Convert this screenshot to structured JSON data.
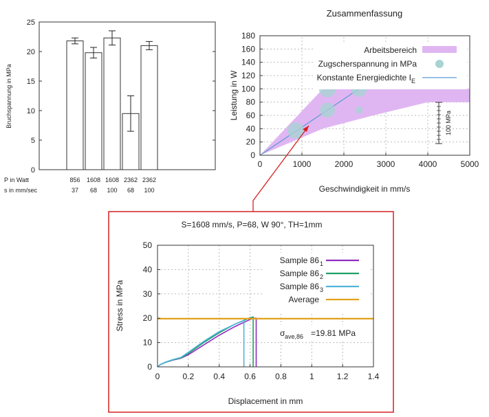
{
  "chart_data": [
    {
      "type": "bar",
      "ylabel": "Bruchspannung in MPa",
      "ylim": [
        0,
        25
      ],
      "yticks": [
        0,
        5,
        10,
        15,
        20,
        25
      ],
      "row_labels": [
        "P in Watt",
        "s in mm/sec"
      ],
      "categories_p": [
        "856",
        "1608",
        "1608",
        "2362",
        "2362"
      ],
      "categories_s": [
        "37",
        "68",
        "100",
        "68",
        "100"
      ],
      "values": [
        21.8,
        19.8,
        22.3,
        9.5,
        21.0
      ],
      "errors": [
        0.5,
        0.9,
        1.2,
        3.0,
        0.7
      ]
    },
    {
      "type": "scatter",
      "title": "Zusammenfassung",
      "xlabel": "Geschwindigkeit in mm/s",
      "ylabel": "Leistung in W",
      "xlim": [
        0,
        5000
      ],
      "ylim": [
        0,
        180
      ],
      "xticks": [
        0,
        1000,
        2000,
        3000,
        4000,
        5000
      ],
      "yticks": [
        0,
        20,
        40,
        60,
        80,
        100,
        120,
        140,
        160,
        180
      ],
      "grid": true,
      "legend": [
        "Arbeitsbereich",
        "Zugscherspannung in MPa",
        "Konstante Energiedichte I",
        "E"
      ],
      "area_upper": [
        [
          0,
          0
        ],
        [
          1500,
          100
        ],
        [
          5000,
          100
        ]
      ],
      "area_lower": [
        [
          5000,
          80
        ],
        [
          4000,
          80
        ],
        [
          2700,
          60
        ],
        [
          1500,
          40
        ],
        [
          0,
          0
        ]
      ],
      "points": [
        {
          "x": 856,
          "y": 37,
          "mpa": 21.8
        },
        {
          "x": 1608,
          "y": 68,
          "mpa": 19.8
        },
        {
          "x": 1608,
          "y": 100,
          "mpa": 22.3
        },
        {
          "x": 2362,
          "y": 68,
          "mpa": 9.5
        },
        {
          "x": 2362,
          "y": 100,
          "mpa": 21.0
        }
      ],
      "energy_line": [
        [
          0,
          0
        ],
        [
          2362,
          100
        ]
      ],
      "scale_bar_label": "100 MPa",
      "colors": {
        "area": "#e0b6f2",
        "points": "#a8d3d3",
        "line": "#5b9bd5"
      }
    },
    {
      "type": "line",
      "title": "S=1608 mm/s, P=68, W 90°, TH=1mm",
      "xlabel": "Displacement in mm",
      "ylabel": "Stress in MPa",
      "xlim": [
        0,
        1.4
      ],
      "ylim": [
        0,
        50
      ],
      "xticks": [
        0,
        0.2,
        0.4,
        0.6,
        0.8,
        1,
        1.2,
        1.4
      ],
      "yticks": [
        0,
        10,
        20,
        30,
        40,
        50
      ],
      "grid": true,
      "legend_names": [
        "Sample 86",
        "Sample 86",
        "Sample 86",
        "Average"
      ],
      "legend_subs": [
        "1",
        "2",
        "3",
        ""
      ],
      "annotation": {
        "sigma": "σ",
        "sub": "ave,86",
        "text": "=19.81 MPa"
      },
      "series": [
        {
          "name": "Sample 86_1",
          "color": "#8e2cc0",
          "x": [
            0,
            0.02,
            0.05,
            0.1,
            0.15,
            0.2,
            0.3,
            0.4,
            0.5,
            0.6,
            0.63,
            0.64,
            0.64
          ],
          "y": [
            0,
            1,
            1.8,
            2.8,
            3.5,
            5,
            9,
            13,
            16.5,
            19.5,
            20,
            20,
            0
          ]
        },
        {
          "name": "Sample 86_2",
          "color": "#1f9e6a",
          "x": [
            0,
            0.02,
            0.05,
            0.1,
            0.15,
            0.2,
            0.3,
            0.4,
            0.5,
            0.6,
            0.62,
            0.62
          ],
          "y": [
            0,
            1,
            1.8,
            2.9,
            3.6,
            5.5,
            10,
            14,
            17.5,
            20.2,
            20.5,
            0
          ]
        },
        {
          "name": "Sample 86_3",
          "color": "#4fb3d9",
          "x": [
            0,
            0.02,
            0.05,
            0.1,
            0.15,
            0.2,
            0.3,
            0.4,
            0.5,
            0.56,
            0.56
          ],
          "y": [
            0,
            1,
            1.9,
            3,
            3.8,
            6,
            10.5,
            14.5,
            17.5,
            19,
            0
          ]
        }
      ],
      "average_y": 19.81,
      "average_color": "#e1a21a"
    }
  ]
}
